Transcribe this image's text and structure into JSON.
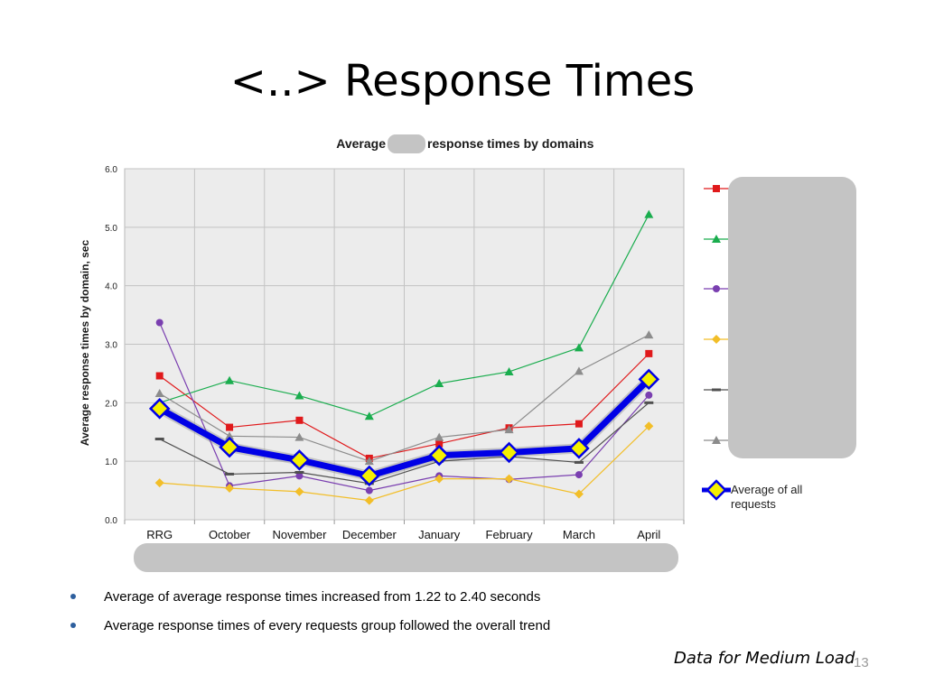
{
  "slide": {
    "title": "<..> Response Times",
    "bullets": [
      "Average of average response times increased from 1.22 to 2.40 seconds",
      "Average response times of every requests group followed the overall trend"
    ],
    "footnote": "Data for Medium Load",
    "page_number": "13"
  },
  "chart_data": {
    "type": "line",
    "title_left": "Average",
    "title_right": "response times  by domains",
    "ylabel": "Average response  times  by domain, sec",
    "xlabel": "",
    "categories": [
      "RRG",
      "October",
      "November",
      "December",
      "January",
      "February",
      "March",
      "April"
    ],
    "ylim": [
      0,
      6
    ],
    "yticks": [
      "0.0",
      "1.0",
      "2.0",
      "3.0",
      "4.0",
      "5.0",
      "6.0"
    ],
    "grid": true,
    "legend_position": "right",
    "series": [
      {
        "color": "#e0191b",
        "marker": "square",
        "values": [
          2.46,
          1.58,
          1.7,
          1.05,
          1.3,
          1.57,
          1.64,
          2.84
        ]
      },
      {
        "color": "#1aad4e",
        "marker": "triangle",
        "values": [
          2.0,
          2.38,
          2.12,
          1.77,
          2.33,
          2.53,
          2.94,
          5.22
        ]
      },
      {
        "color": "#7a3fb0",
        "marker": "circle",
        "values": [
          3.37,
          0.58,
          0.75,
          0.5,
          0.75,
          0.69,
          0.77,
          2.13
        ]
      },
      {
        "color": "#f2be28",
        "marker": "diamond",
        "values": [
          0.63,
          0.54,
          0.48,
          0.33,
          0.7,
          0.7,
          0.44,
          1.6
        ]
      },
      {
        "color": "#505050",
        "marker": "dash",
        "values": [
          1.38,
          0.78,
          0.81,
          0.62,
          1.0,
          1.08,
          0.98,
          2.0
        ]
      },
      {
        "color": "#8c8c8c",
        "marker": "triangle",
        "values": [
          2.16,
          1.43,
          1.41,
          1.0,
          1.41,
          1.54,
          2.54,
          3.16
        ]
      },
      {
        "name": "Average of all requests",
        "color": "#0000e6",
        "marker": "diamond-yellow",
        "thick": true,
        "values": [
          1.9,
          1.24,
          1.02,
          0.75,
          1.1,
          1.15,
          1.22,
          2.4
        ]
      }
    ]
  }
}
